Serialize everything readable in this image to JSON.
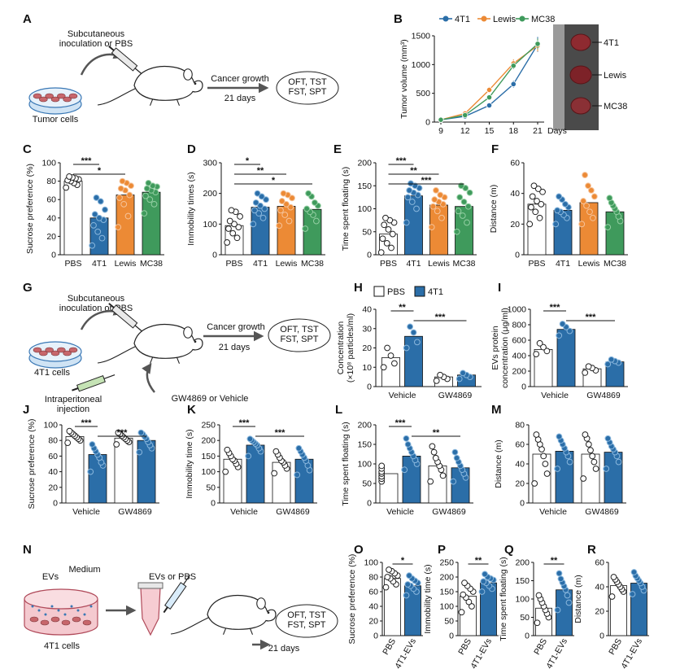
{
  "colors": {
    "pbs": "#ffffff",
    "t41": "#2b6ea8",
    "lewis": "#ec8a35",
    "mc38": "#3f9a5c",
    "t41_light": "#8ab7dd",
    "lewis_light": "#f6c39a",
    "mc38_light": "#94cfa3"
  },
  "panel_letters": [
    "A",
    "B",
    "C",
    "D",
    "E",
    "F",
    "G",
    "H",
    "I",
    "J",
    "K",
    "L",
    "M",
    "N",
    "O",
    "P",
    "Q",
    "R"
  ],
  "schematics": {
    "A": {
      "inoc": "Subcutaneous\ninoculation or PBS",
      "cells": "Tumor cells",
      "growth": "Cancer growth",
      "days": "21 days",
      "tests": "OFT, TST\nFST, SPT"
    },
    "G": {
      "inoc": "Subcutaneous\ninoculation or PBS",
      "cells": "4T1 cells",
      "ip": "Intraperitoneal\ninjection",
      "treat": "GW4869 or Vehicle",
      "growth": "Cancer growth",
      "days": "21 days",
      "tests": "OFT, TST\nFST, SPT"
    },
    "N": {
      "evs": "EVs",
      "medium": "Medium",
      "cells": "4T1 cells",
      "inject": "EVs or PBS",
      "days": "21 days",
      "tests": "OFT, TST\nFST, SPT"
    }
  },
  "tumor_photo_labels": [
    "4T1",
    "Lewis",
    "MC38"
  ],
  "legend_h": [
    "PBS",
    "4T1"
  ],
  "chart_data": [
    {
      "id": "B",
      "type": "line",
      "ylabel": "Tumor volume (mm³)",
      "xlabel": "Days",
      "x": [
        9,
        12,
        15,
        18,
        21
      ],
      "ylim": [
        0,
        1500
      ],
      "yticks": [
        0,
        500,
        1000,
        1500
      ],
      "series": [
        {
          "name": "4T1",
          "color": "t41",
          "values": [
            40,
            100,
            290,
            660,
            1350
          ],
          "err": [
            10,
            20,
            40,
            60,
            130
          ]
        },
        {
          "name": "Lewis",
          "color": "lewis",
          "values": [
            40,
            150,
            560,
            1020,
            1330
          ],
          "err": [
            10,
            20,
            50,
            70,
            100
          ]
        },
        {
          "name": "MC38",
          "color": "mc38",
          "values": [
            40,
            120,
            430,
            980,
            1360
          ],
          "err": [
            10,
            20,
            40,
            60,
            90
          ]
        }
      ]
    },
    {
      "id": "C",
      "type": "bar",
      "ylabel": "Sucrose preference (%)",
      "categories": [
        "PBS",
        "4T1",
        "Lewis",
        "MC38"
      ],
      "colors": [
        "pbs",
        "t41",
        "lewis",
        "mc38"
      ],
      "values": [
        80,
        40,
        65,
        68
      ],
      "ylim": [
        0,
        100
      ],
      "yticks": [
        0,
        20,
        40,
        60,
        80,
        100
      ],
      "points": [
        [
          73,
          76,
          78,
          80,
          81,
          82,
          83,
          84,
          85
        ],
        [
          10,
          18,
          25,
          32,
          38,
          40,
          44,
          49,
          58,
          62
        ],
        [
          30,
          42,
          55,
          62,
          65,
          70,
          72,
          75,
          78,
          80
        ],
        [
          45,
          55,
          60,
          64,
          68,
          70,
          72,
          74,
          75,
          78
        ]
      ],
      "sig": [
        {
          "a": 0,
          "b": 1,
          "label": "***"
        },
        {
          "a": 0,
          "b": 2,
          "label": "*"
        }
      ]
    },
    {
      "id": "D",
      "type": "bar",
      "ylabel": "Immobility times (s)",
      "categories": [
        "PBS",
        "4T1",
        "Lewis",
        "MC38"
      ],
      "colors": [
        "pbs",
        "t41",
        "lewis",
        "mc38"
      ],
      "values": [
        95,
        155,
        158,
        148
      ],
      "ylim": [
        0,
        300
      ],
      "yticks": [
        0,
        100,
        200,
        300
      ],
      "points": [
        [
          40,
          55,
          70,
          85,
          90,
          100,
          110,
          125,
          140,
          145
        ],
        [
          100,
          120,
          135,
          145,
          150,
          160,
          170,
          180,
          190,
          200
        ],
        [
          95,
          110,
          130,
          145,
          155,
          165,
          175,
          185,
          195,
          200
        ],
        [
          85,
          110,
          130,
          140,
          150,
          160,
          170,
          190,
          200
        ]
      ],
      "sig": [
        {
          "a": 0,
          "b": 1,
          "label": "*"
        },
        {
          "a": 0,
          "b": 2,
          "label": "**"
        },
        {
          "a": 0,
          "b": 3,
          "label": "*"
        }
      ]
    },
    {
      "id": "E",
      "type": "bar",
      "ylabel": "Time spent floating (s)",
      "categories": [
        "PBS",
        "4T1",
        "Lewis",
        "MC38"
      ],
      "colors": [
        "pbs",
        "t41",
        "lewis",
        "mc38"
      ],
      "values": [
        45,
        128,
        108,
        105
      ],
      "ylim": [
        0,
        200
      ],
      "yticks": [
        0,
        50,
        100,
        150,
        200
      ],
      "points": [
        [
          5,
          15,
          25,
          35,
          45,
          55,
          65,
          70,
          75,
          80
        ],
        [
          70,
          100,
          115,
          125,
          130,
          135,
          140,
          145,
          150,
          155
        ],
        [
          60,
          80,
          95,
          105,
          110,
          115,
          120,
          125,
          130,
          140
        ],
        [
          50,
          70,
          85,
          95,
          105,
          115,
          125,
          135,
          145,
          150
        ]
      ],
      "sig": [
        {
          "a": 0,
          "b": 1,
          "label": "***"
        },
        {
          "a": 0,
          "b": 2,
          "label": "**"
        },
        {
          "a": 0,
          "b": 3,
          "label": "***"
        }
      ]
    },
    {
      "id": "F",
      "type": "bar",
      "ylabel": "Distance (m)",
      "categories": [
        "PBS",
        "4T1",
        "Lewis",
        "MC38"
      ],
      "colors": [
        "pbs",
        "t41",
        "lewis",
        "mc38"
      ],
      "values": [
        33,
        29,
        34,
        28
      ],
      "ylim": [
        0,
        60
      ],
      "yticks": [
        0,
        20,
        40,
        60
      ],
      "points": [
        [
          20,
          24,
          28,
          31,
          33,
          35,
          38,
          41,
          43,
          45
        ],
        [
          20,
          24,
          26,
          28,
          29,
          31,
          33,
          36,
          38
        ],
        [
          20,
          24,
          28,
          32,
          35,
          38,
          42,
          45,
          52
        ],
        [
          18,
          22,
          25,
          28,
          30,
          32,
          34,
          37
        ]
      ],
      "sig": []
    },
    {
      "id": "H",
      "type": "bar",
      "ylabel": "Concentration\n(×10⁸ particles/ml)",
      "categories": [
        "Vehicle",
        "GW4869"
      ],
      "bars": [
        {
          "group": 0,
          "color": "pbs",
          "value": 15
        },
        {
          "group": 0,
          "color": "t41",
          "value": 26
        },
        {
          "group": 1,
          "color": "pbs",
          "value": 5
        },
        {
          "group": 1,
          "color": "t41",
          "value": 6
        }
      ],
      "ylim": [
        0,
        40
      ],
      "yticks": [
        0,
        10,
        20,
        30,
        40
      ],
      "points": [
        [
          10,
          12,
          16,
          20
        ],
        [
          20,
          23,
          28,
          31
        ],
        [
          3,
          4,
          5,
          6
        ],
        [
          4,
          5,
          6,
          7
        ]
      ],
      "sig": [
        {
          "a": 0,
          "b": 1,
          "label": "**"
        },
        {
          "a": 1,
          "b": 3,
          "label": "***"
        }
      ]
    },
    {
      "id": "I",
      "type": "bar",
      "ylabel": "EVs protein\nconcentration (μg/ml)",
      "categories": [
        "Vehicle",
        "GW4869"
      ],
      "bars": [
        {
          "group": 0,
          "color": "pbs",
          "value": 480
        },
        {
          "group": 0,
          "color": "t41",
          "value": 740
        },
        {
          "group": 1,
          "color": "pbs",
          "value": 230
        },
        {
          "group": 1,
          "color": "t41",
          "value": 320
        }
      ],
      "ylim": [
        0,
        1000
      ],
      "yticks": [
        0,
        200,
        400,
        600,
        800,
        1000
      ],
      "points": [
        [
          420,
          460,
          510,
          560
        ],
        [
          660,
          720,
          770,
          810
        ],
        [
          180,
          210,
          240,
          260
        ],
        [
          290,
          310,
          330,
          350
        ]
      ],
      "sig": [
        {
          "a": 0,
          "b": 1,
          "label": "***"
        },
        {
          "a": 1,
          "b": 3,
          "label": "***"
        }
      ]
    },
    {
      "id": "J",
      "type": "bar",
      "ylabel": "Sucrose preference (%)",
      "categories": [
        "Vehicle",
        "GW4869"
      ],
      "bars": [
        {
          "group": 0,
          "color": "pbs",
          "value": 85
        },
        {
          "group": 0,
          "color": "t41",
          "value": 62
        },
        {
          "group": 1,
          "color": "pbs",
          "value": 83
        },
        {
          "group": 1,
          "color": "t41",
          "value": 80
        }
      ],
      "ylim": [
        0,
        100
      ],
      "yticks": [
        0,
        20,
        40,
        60,
        80,
        100
      ],
      "points": [
        [
          77,
          80,
          82,
          84,
          86,
          88,
          90,
          92
        ],
        [
          40,
          48,
          52,
          58,
          62,
          66,
          70,
          75
        ],
        [
          75,
          78,
          80,
          82,
          84,
          86,
          88,
          90
        ],
        [
          65,
          70,
          74,
          78,
          82,
          85,
          88,
          90
        ]
      ],
      "sig": [
        {
          "a": 0,
          "b": 1,
          "label": "***"
        },
        {
          "a": 1,
          "b": 3,
          "label": "***"
        }
      ]
    },
    {
      "id": "K",
      "type": "bar",
      "ylabel": "Immobility time (s)",
      "categories": [
        "Vehicle",
        "GW4869"
      ],
      "bars": [
        {
          "group": 0,
          "color": "pbs",
          "value": 140
        },
        {
          "group": 0,
          "color": "t41",
          "value": 185
        },
        {
          "group": 1,
          "color": "pbs",
          "value": 130
        },
        {
          "group": 1,
          "color": "t41",
          "value": 140
        }
      ],
      "ylim": [
        0,
        250
      ],
      "yticks": [
        0,
        50,
        100,
        150,
        200,
        250
      ],
      "points": [
        [
          100,
          115,
          125,
          135,
          140,
          150,
          160,
          170
        ],
        [
          150,
          165,
          175,
          185,
          190,
          195,
          200,
          205
        ],
        [
          95,
          110,
          120,
          130,
          135,
          145,
          155,
          165
        ],
        [
          90,
          105,
          120,
          135,
          145,
          155,
          165,
          175
        ]
      ],
      "sig": [
        {
          "a": 0,
          "b": 1,
          "label": "***"
        },
        {
          "a": 1,
          "b": 3,
          "label": "***"
        }
      ]
    },
    {
      "id": "L",
      "type": "bar",
      "ylabel": "Time spent floating (s)",
      "categories": [
        "Vehicle",
        "GW4869"
      ],
      "bars": [
        {
          "group": 0,
          "color": "pbs",
          "value": 75
        },
        {
          "group": 0,
          "color": "t41",
          "value": 120
        },
        {
          "group": 1,
          "color": "pbs",
          "value": 95
        },
        {
          "group": 1,
          "color": "t41",
          "value": 90
        }
      ],
      "ylim": [
        0,
        200
      ],
      "yticks": [
        0,
        50,
        100,
        150,
        200
      ],
      "points": [
        [
          55,
          62,
          68,
          75,
          80,
          88,
          95
        ],
        [
          85,
          100,
          110,
          120,
          130,
          140,
          150,
          165
        ],
        [
          55,
          70,
          85,
          95,
          105,
          115,
          130,
          145
        ],
        [
          55,
          65,
          75,
          85,
          95,
          105,
          115,
          130
        ]
      ],
      "sig": [
        {
          "a": 0,
          "b": 1,
          "label": "***"
        },
        {
          "a": 1,
          "b": 3,
          "label": "**"
        }
      ]
    },
    {
      "id": "M",
      "type": "bar",
      "ylabel": "Distance (m)",
      "categories": [
        "Vehicle",
        "GW4869"
      ],
      "bars": [
        {
          "group": 0,
          "color": "pbs",
          "value": 50
        },
        {
          "group": 0,
          "color": "t41",
          "value": 53
        },
        {
          "group": 1,
          "color": "pbs",
          "value": 50
        },
        {
          "group": 1,
          "color": "t41",
          "value": 52
        }
      ],
      "ylim": [
        0,
        80
      ],
      "yticks": [
        0,
        20,
        40,
        60,
        80
      ],
      "points": [
        [
          20,
          30,
          40,
          48,
          55,
          60,
          65,
          70
        ],
        [
          35,
          42,
          48,
          52,
          56,
          60,
          64,
          68
        ],
        [
          25,
          35,
          42,
          48,
          54,
          60,
          66,
          70
        ],
        [
          35,
          42,
          48,
          52,
          55,
          58,
          62,
          66
        ]
      ],
      "sig": []
    },
    {
      "id": "O",
      "type": "bar",
      "ylabel": "Sucrose preference (%)",
      "categories": [
        "PBS",
        "4T1-EVs"
      ],
      "colors": [
        "pbs",
        "t41"
      ],
      "values": [
        78,
        68
      ],
      "ylim": [
        0,
        100
      ],
      "yticks": [
        0,
        20,
        40,
        60,
        80,
        100
      ],
      "points": [
        [
          66,
          70,
          74,
          78,
          80,
          82,
          85,
          88,
          90
        ],
        [
          55,
          60,
          64,
          68,
          70,
          72,
          75,
          78,
          82
        ]
      ],
      "sig": [
        {
          "a": 0,
          "b": 1,
          "label": "*"
        }
      ]
    },
    {
      "id": "P",
      "type": "bar",
      "ylabel": "Immobility time (s)",
      "categories": [
        "PBS",
        "4T1-EVs"
      ],
      "colors": [
        "pbs",
        "t41"
      ],
      "values": [
        135,
        180
      ],
      "ylim": [
        0,
        250
      ],
      "yticks": [
        0,
        50,
        100,
        150,
        200,
        250
      ],
      "points": [
        [
          80,
          100,
          115,
          130,
          140,
          150,
          160,
          170,
          180
        ],
        [
          150,
          160,
          170,
          180,
          185,
          190,
          195,
          200,
          210
        ]
      ],
      "sig": [
        {
          "a": 0,
          "b": 1,
          "label": "**"
        }
      ]
    },
    {
      "id": "Q",
      "type": "bar",
      "ylabel": "Time spent floating (s)",
      "categories": [
        "PBS",
        "4T1-EVs"
      ],
      "colors": [
        "pbs",
        "t41"
      ],
      "values": [
        75,
        125
      ],
      "ylim": [
        0,
        200
      ],
      "yticks": [
        0,
        50,
        100,
        150,
        200
      ],
      "points": [
        [
          35,
          50,
          60,
          70,
          80,
          90,
          100,
          110
        ],
        [
          70,
          90,
          110,
          125,
          135,
          145,
          155,
          170
        ]
      ],
      "sig": [
        {
          "a": 0,
          "b": 1,
          "label": "**"
        }
      ]
    },
    {
      "id": "R",
      "type": "bar",
      "ylabel": "Distance (m)",
      "categories": [
        "PBS",
        "4T1-EVs"
      ],
      "colors": [
        "pbs",
        "t41"
      ],
      "values": [
        41,
        43
      ],
      "ylim": [
        0,
        60
      ],
      "yticks": [
        0,
        20,
        40,
        60
      ],
      "points": [
        [
          32,
          36,
          38,
          40,
          42,
          44,
          46,
          48
        ],
        [
          34,
          37,
          40,
          43,
          45,
          47,
          49,
          52
        ]
      ],
      "sig": []
    }
  ]
}
